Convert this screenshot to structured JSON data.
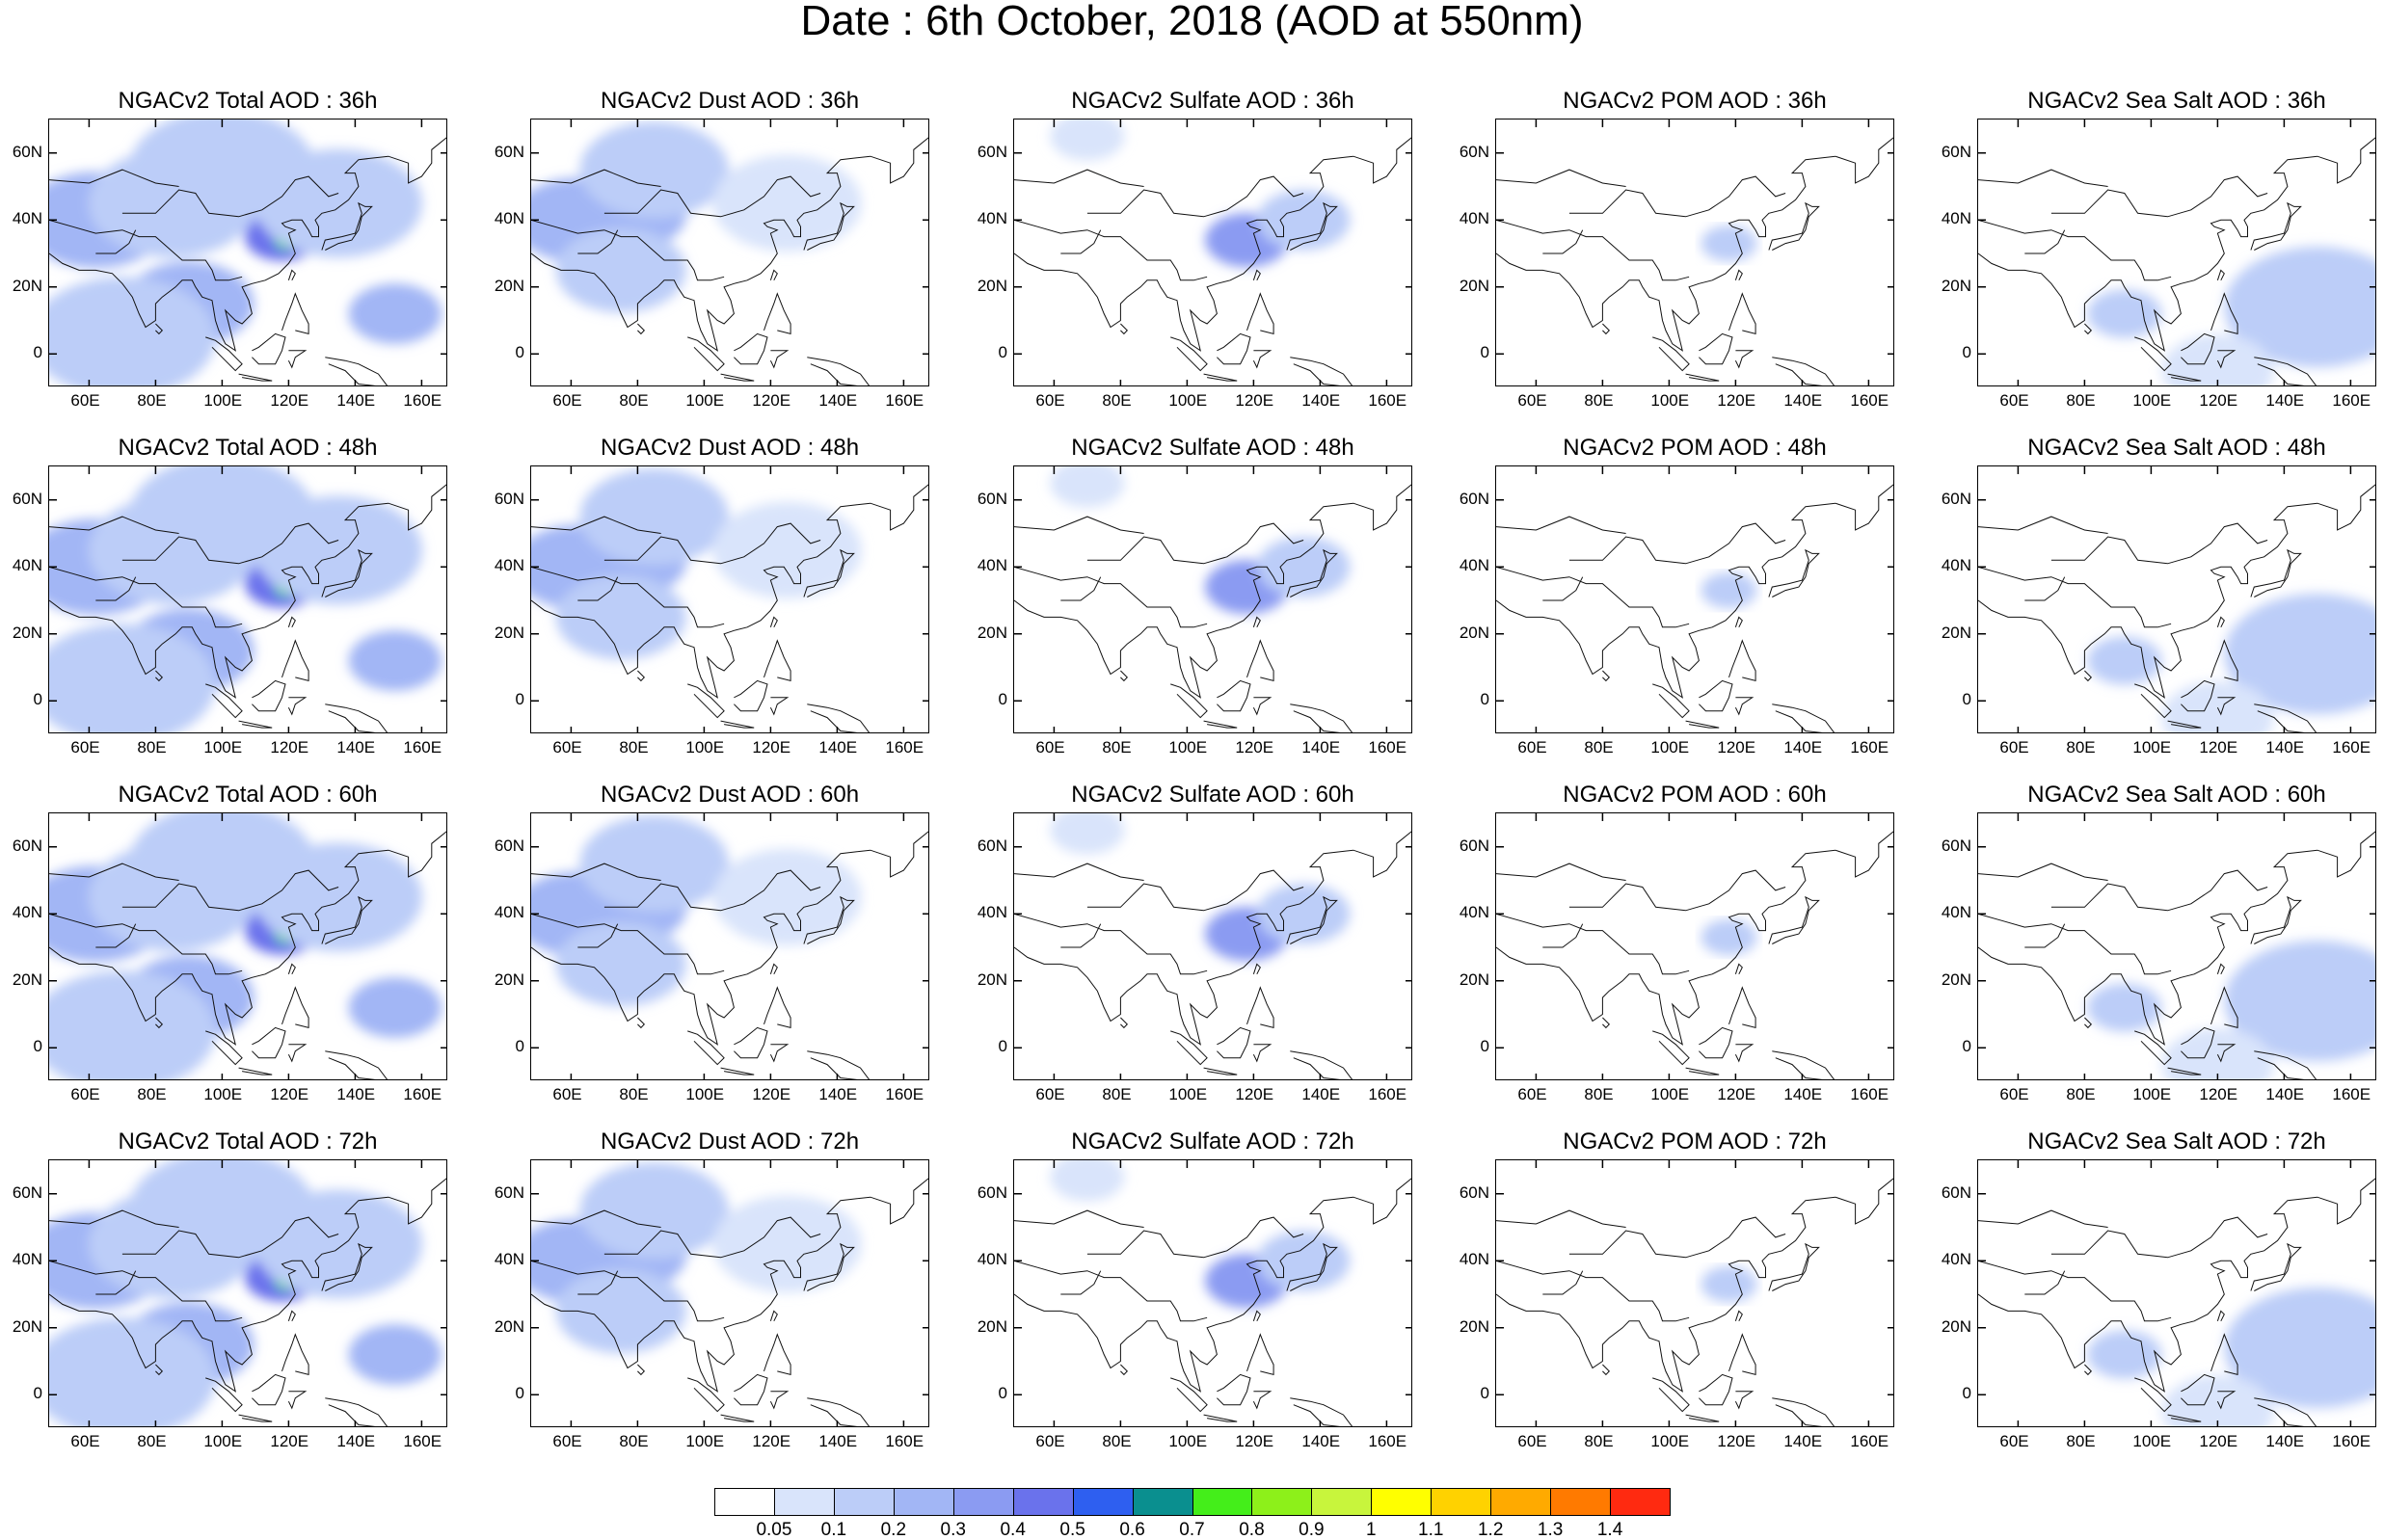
{
  "title": "Date : 6th October, 2018 (AOD at 550nm)",
  "axes": {
    "lon_ticks": [
      "60E",
      "80E",
      "100E",
      "120E",
      "140E",
      "160E"
    ],
    "lat_ticks": [
      "60N",
      "40N",
      "20N",
      "0"
    ],
    "lon_values": [
      60,
      80,
      100,
      120,
      140,
      160
    ],
    "lat_values": [
      60,
      40,
      20,
      0
    ],
    "lon_range": [
      48,
      168
    ],
    "lat_range": [
      -10,
      70
    ]
  },
  "panels": [
    {
      "title": "NGACv2 Total AOD : 36h",
      "species": "total",
      "hour": 36
    },
    {
      "title": "NGACv2 Dust AOD : 36h",
      "species": "dust",
      "hour": 36
    },
    {
      "title": "NGACv2 Sulfate AOD : 36h",
      "species": "sulfate",
      "hour": 36
    },
    {
      "title": "NGACv2 POM AOD : 36h",
      "species": "pom",
      "hour": 36
    },
    {
      "title": "NGACv2 Sea Salt AOD : 36h",
      "species": "seasalt",
      "hour": 36
    },
    {
      "title": "NGACv2 Total AOD : 48h",
      "species": "total",
      "hour": 48
    },
    {
      "title": "NGACv2 Dust AOD : 48h",
      "species": "dust",
      "hour": 48
    },
    {
      "title": "NGACv2 Sulfate AOD : 48h",
      "species": "sulfate",
      "hour": 48
    },
    {
      "title": "NGACv2 POM AOD : 48h",
      "species": "pom",
      "hour": 48
    },
    {
      "title": "NGACv2 Sea Salt AOD : 48h",
      "species": "seasalt",
      "hour": 48
    },
    {
      "title": "NGACv2 Total AOD : 60h",
      "species": "total",
      "hour": 60
    },
    {
      "title": "NGACv2 Dust AOD : 60h",
      "species": "dust",
      "hour": 60
    },
    {
      "title": "NGACv2 Sulfate AOD : 60h",
      "species": "sulfate",
      "hour": 60
    },
    {
      "title": "NGACv2 POM AOD : 60h",
      "species": "pom",
      "hour": 60
    },
    {
      "title": "NGACv2 Sea Salt AOD : 60h",
      "species": "seasalt",
      "hour": 60
    },
    {
      "title": "NGACv2 Total AOD : 72h",
      "species": "total",
      "hour": 72
    },
    {
      "title": "NGACv2 Dust AOD : 72h",
      "species": "dust",
      "hour": 72
    },
    {
      "title": "NGACv2 Sulfate AOD : 72h",
      "species": "sulfate",
      "hour": 72
    },
    {
      "title": "NGACv2 POM AOD : 72h",
      "species": "pom",
      "hour": 72
    },
    {
      "title": "NGACv2 Sea Salt  AOD : 72h",
      "species": "seasalt",
      "hour": 72
    }
  ],
  "colorbar": {
    "labels": [
      "0.05",
      "0.1",
      "0.2",
      "0.3",
      "0.4",
      "0.5",
      "0.6",
      "0.7",
      "0.8",
      "0.9",
      "1",
      "1.1",
      "1.2",
      "1.3",
      "1.4"
    ],
    "colors": [
      "#ffffff",
      "#d9e4fb",
      "#bccdf8",
      "#a2b6f5",
      "#8b9bf2",
      "#6a72ec",
      "#2e5ff0",
      "#0a8f8f",
      "#44ee1a",
      "#8df01a",
      "#c8f53c",
      "#ffff00",
      "#ffd200",
      "#ffaa00",
      "#ff7a00",
      "#ff2a10"
    ]
  },
  "aod_features": {
    "total": [
      {
        "lon": 62,
        "lat": 40,
        "level": 0.2,
        "r": 16
      },
      {
        "lon": 85,
        "lat": 45,
        "level": 0.15,
        "r": 18
      },
      {
        "lon": 100,
        "lat": 55,
        "level": 0.1,
        "r": 20
      },
      {
        "lon": 118,
        "lat": 35,
        "level": 0.4,
        "r": 8
      },
      {
        "lon": 120,
        "lat": 34,
        "level": 0.7,
        "r": 3
      },
      {
        "lon": 90,
        "lat": 15,
        "level": 0.2,
        "r": 14
      },
      {
        "lon": 152,
        "lat": 12,
        "level": 0.25,
        "r": 10
      },
      {
        "lon": 70,
        "lat": 5,
        "level": 0.1,
        "r": 20
      },
      {
        "lon": 135,
        "lat": 45,
        "level": 0.12,
        "r": 18
      }
    ],
    "dust": [
      {
        "lon": 62,
        "lat": 40,
        "level": 0.25,
        "r": 14
      },
      {
        "lon": 78,
        "lat": 42,
        "level": 0.2,
        "r": 12
      },
      {
        "lon": 85,
        "lat": 55,
        "level": 0.1,
        "r": 16
      },
      {
        "lon": 75,
        "lat": 25,
        "level": 0.15,
        "r": 14
      },
      {
        "lon": 125,
        "lat": 45,
        "level": 0.08,
        "r": 16
      }
    ],
    "sulfate": [
      {
        "lon": 118,
        "lat": 34,
        "level": 0.3,
        "r": 9
      },
      {
        "lon": 135,
        "lat": 40,
        "level": 0.15,
        "r": 10
      },
      {
        "lon": 70,
        "lat": 65,
        "level": 0.08,
        "r": 8
      }
    ],
    "pom": [
      {
        "lon": 118,
        "lat": 33,
        "level": 0.1,
        "r": 6
      }
    ],
    "seasalt": [
      {
        "lon": 150,
        "lat": 14,
        "level": 0.25,
        "r": 10
      },
      {
        "lon": 150,
        "lat": 14,
        "level": 0.12,
        "r": 20
      },
      {
        "lon": 92,
        "lat": 12,
        "level": 0.12,
        "r": 8
      },
      {
        "lon": 120,
        "lat": -5,
        "level": 0.08,
        "r": 12
      }
    ]
  }
}
